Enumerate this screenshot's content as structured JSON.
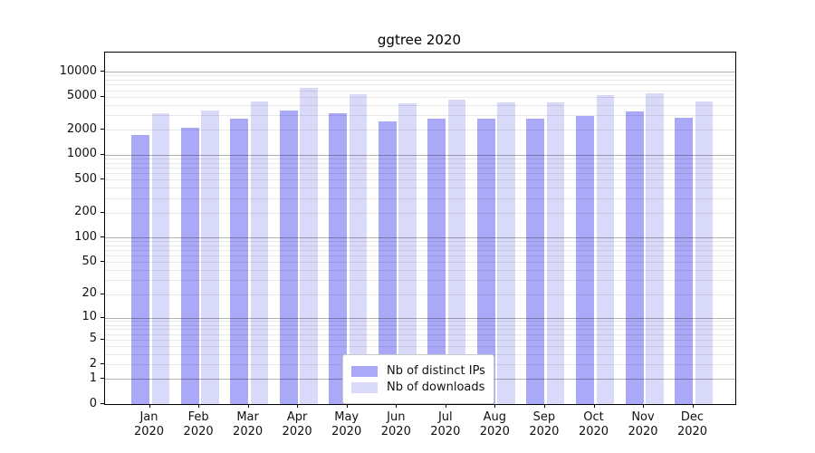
{
  "title": "ggtree 2020",
  "chart_data": {
    "type": "bar",
    "title": "ggtree 2020",
    "subtitle": "",
    "yscale": "log10(1+y)",
    "ylim": [
      0,
      17000
    ],
    "grid": "on",
    "legend_position": "bottom-center-inside",
    "categories": [
      "Jan 2020",
      "Feb 2020",
      "Mar 2020",
      "Apr 2020",
      "May 2020",
      "Jun 2020",
      "Jul 2020",
      "Aug 2020",
      "Sep 2020",
      "Oct 2020",
      "Nov 2020",
      "Dec 2020"
    ],
    "y_tick_labels": [
      "0",
      "1",
      "2",
      "5",
      "10",
      "20",
      "50",
      "100",
      "200",
      "500",
      "1000",
      "2000",
      "5000",
      "10000"
    ],
    "series": [
      {
        "name": "Nb of distinct IPs",
        "color": "#a9a9f7",
        "values": [
          1750,
          2100,
          2750,
          3400,
          3150,
          2550,
          2700,
          2700,
          2750,
          2900,
          3300,
          2800
        ]
      },
      {
        "name": "Nb of downloads",
        "color": "#d9d9f9",
        "values": [
          3150,
          3450,
          4350,
          6350,
          5350,
          4200,
          4600,
          4250,
          4300,
          5200,
          5500,
          4350
        ]
      }
    ],
    "colors": {
      "frame": "#000000",
      "grid_major": "#b3b3b3",
      "grid_minor": "#e8e8e8",
      "text": "#111111",
      "legend_border": "#c9c9c9",
      "background": "#ffffff"
    }
  }
}
